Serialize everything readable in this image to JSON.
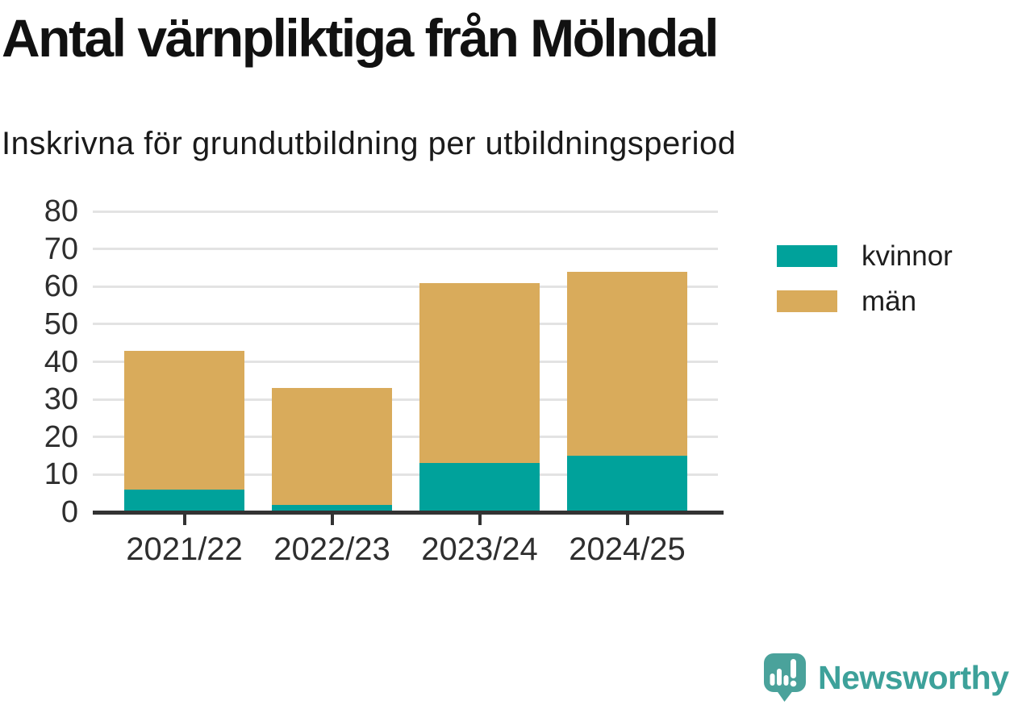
{
  "header": {
    "title": "Antal värnpliktiga från Mölndal",
    "subtitle": "Inskrivna för grundutbildning per utbildningsperiod"
  },
  "chart_data": {
    "type": "bar",
    "stacked": true,
    "title": "Antal värnpliktiga från Mölndal",
    "subtitle": "Inskrivna för grundutbildning per utbildningsperiod",
    "categories": [
      "2021/22",
      "2022/23",
      "2023/24",
      "2024/25"
    ],
    "series": [
      {
        "name": "kvinnor",
        "color": "#00a29b",
        "values": [
          6,
          2,
          13,
          15
        ]
      },
      {
        "name": "män",
        "color": "#d9ab5b",
        "values": [
          37,
          31,
          48,
          49
        ]
      }
    ],
    "stack_totals": [
      43,
      33,
      61,
      64
    ],
    "xlabel": "",
    "ylabel": "",
    "ylim": [
      0,
      80
    ],
    "yticks": [
      0,
      10,
      20,
      30,
      40,
      50,
      60,
      70,
      80
    ],
    "grid": "horizontal",
    "legend_position": "right"
  },
  "footer": {
    "brand": "Newsworthy",
    "brand_color": "#3da19a",
    "logo_icon": "bar-chart-speech-bubble-icon"
  }
}
